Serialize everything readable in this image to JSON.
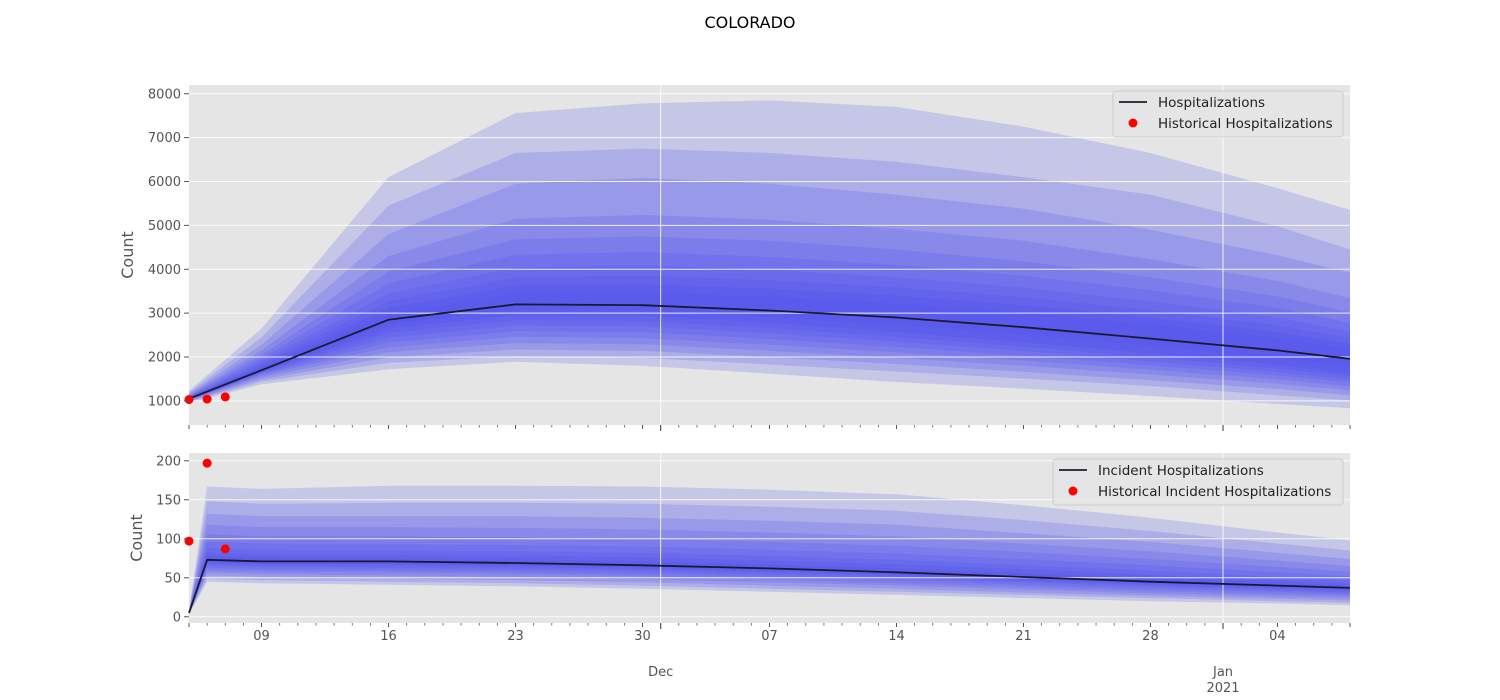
{
  "title": "COLORADO",
  "colors": {
    "panel_bg": "#e5e5e5",
    "grid": "#ffffff",
    "fan": "#4a4af0",
    "median_line": "#1a1a2e",
    "historical": "#ff0000"
  },
  "x_axis": {
    "start_date": "2020-11-05",
    "end_date": "2021-01-08",
    "major_ticks": [
      {
        "date": "2020-12-01",
        "label": "Dec"
      },
      {
        "date": "2021-01-01",
        "label": "Jan\n2021"
      }
    ],
    "minor_tick_labels": [
      {
        "date": "2020-11-09",
        "label": "09"
      },
      {
        "date": "2020-11-16",
        "label": "16"
      },
      {
        "date": "2020-11-23",
        "label": "23"
      },
      {
        "date": "2020-11-30",
        "label": "30"
      },
      {
        "date": "2020-12-07",
        "label": "07"
      },
      {
        "date": "2020-12-14",
        "label": "14"
      },
      {
        "date": "2020-12-21",
        "label": "21"
      },
      {
        "date": "2020-12-28",
        "label": "28"
      },
      {
        "date": "2021-01-04",
        "label": "04"
      }
    ]
  },
  "chart_data": [
    {
      "type": "area",
      "ylabel": "Count",
      "ylim": [
        450,
        8200
      ],
      "yticks": [
        1000,
        2000,
        3000,
        4000,
        5000,
        6000,
        7000,
        8000
      ],
      "grid": true,
      "legend_placement": "top-right",
      "legend": [
        "Hospitalizations",
        "Historical Hospitalizations"
      ],
      "x": [
        "2020-11-05",
        "2020-11-09",
        "2020-11-16",
        "2020-11-23",
        "2020-11-30",
        "2020-12-07",
        "2020-12-14",
        "2020-12-21",
        "2020-12-28",
        "2021-01-04",
        "2021-01-08"
      ],
      "series": [
        {
          "name": "Hospitalizations",
          "values": [
            1050,
            1700,
            2850,
            3200,
            3180,
            3060,
            2900,
            2680,
            2420,
            2150,
            1960
          ]
        }
      ],
      "bands": [
        {
          "lower": [
            950,
            1380,
            1720,
            1890,
            1800,
            1620,
            1430,
            1280,
            1110,
            930,
            830
          ],
          "upper": [
            1230,
            2650,
            6100,
            7560,
            7780,
            7850,
            7700,
            7250,
            6650,
            5850,
            5350
          ]
        },
        {
          "lower": [
            975,
            1440,
            1870,
            2020,
            1980,
            1830,
            1670,
            1510,
            1340,
            1130,
            1010
          ],
          "upper": [
            1190,
            2450,
            5450,
            6650,
            6750,
            6650,
            6450,
            6100,
            5700,
            4980,
            4450
          ]
        },
        {
          "lower": [
            990,
            1490,
            1990,
            2170,
            2140,
            2000,
            1840,
            1660,
            1470,
            1270,
            1130
          ],
          "upper": [
            1160,
            2280,
            4800,
            5950,
            6080,
            5950,
            5700,
            5380,
            4900,
            4320,
            3920
          ]
        },
        {
          "lower": [
            1002,
            1540,
            2110,
            2320,
            2290,
            2140,
            1980,
            1800,
            1600,
            1390,
            1240
          ],
          "upper": [
            1135,
            2150,
            4300,
            5150,
            5240,
            5130,
            4920,
            4650,
            4230,
            3740,
            3340
          ]
        },
        {
          "lower": [
            1012,
            1580,
            2220,
            2460,
            2430,
            2280,
            2110,
            1920,
            1710,
            1490,
            1330
          ],
          "upper": [
            1115,
            2050,
            3950,
            4680,
            4750,
            4650,
            4450,
            4180,
            3820,
            3380,
            3020
          ]
        },
        {
          "lower": [
            1022,
            1610,
            2330,
            2590,
            2570,
            2410,
            2230,
            2030,
            1810,
            1580,
            1420
          ],
          "upper": [
            1100,
            1970,
            3680,
            4330,
            4390,
            4280,
            4100,
            3850,
            3520,
            3120,
            2780
          ]
        },
        {
          "lower": [
            1030,
            1635,
            2440,
            2720,
            2700,
            2540,
            2350,
            2140,
            1900,
            1660,
            1490
          ],
          "upper": [
            1088,
            1900,
            3450,
            4040,
            4090,
            3990,
            3820,
            3580,
            3270,
            2900,
            2590
          ]
        },
        {
          "lower": [
            1036,
            1655,
            2550,
            2840,
            2820,
            2660,
            2460,
            2240,
            1990,
            1740,
            1560
          ],
          "upper": [
            1078,
            1840,
            3270,
            3810,
            3850,
            3750,
            3590,
            3360,
            3070,
            2720,
            2430
          ]
        },
        {
          "lower": [
            1041,
            1670,
            2650,
            2960,
            2940,
            2780,
            2570,
            2340,
            2080,
            1820,
            1630
          ],
          "upper": [
            1070,
            1790,
            3120,
            3620,
            3650,
            3560,
            3400,
            3180,
            2900,
            2570,
            2300
          ]
        },
        {
          "lower": [
            1045,
            1685,
            2750,
            3080,
            3060,
            2920,
            2740,
            2510,
            2250,
            1980,
            1800
          ],
          "upper": [
            1062,
            1745,
            2990,
            3440,
            3470,
            3380,
            3220,
            3010,
            2740,
            2430,
            2180
          ]
        }
      ],
      "historical": {
        "name": "Historical Hospitalizations",
        "x": [
          "2020-11-05",
          "2020-11-06",
          "2020-11-07"
        ],
        "values": [
          1030,
          1040,
          1090
        ]
      }
    },
    {
      "type": "area",
      "ylabel": "Count",
      "ylim": [
        -8,
        210
      ],
      "yticks": [
        0,
        50,
        100,
        150,
        200
      ],
      "grid": true,
      "legend_placement": "top-right",
      "legend": [
        "Incident Hospitalizations",
        "Historical Incident Hospitalizations"
      ],
      "x": [
        "2020-11-05",
        "2020-11-06",
        "2020-11-09",
        "2020-11-16",
        "2020-11-23",
        "2020-11-30",
        "2020-12-07",
        "2020-12-14",
        "2020-12-21",
        "2020-12-28",
        "2021-01-04",
        "2021-01-08"
      ],
      "series": [
        {
          "name": "Incident Hospitalizations",
          "values": [
            5,
            73,
            71,
            71,
            69,
            66,
            62,
            57,
            51,
            45,
            40,
            37
          ]
        }
      ],
      "bands": [
        {
          "lower": [
            3,
            45,
            43,
            41,
            39,
            36,
            32,
            28,
            24,
            20,
            17,
            15
          ],
          "upper": [
            8,
            167,
            164,
            168,
            168,
            167,
            163,
            157,
            143,
            127,
            108,
            98
          ]
        },
        {
          "lower": [
            3.5,
            49,
            47,
            45,
            43,
            40,
            36,
            32,
            28,
            24,
            20,
            18
          ],
          "upper": [
            7.5,
            148,
            145,
            146,
            146,
            145,
            141,
            136,
            124,
            110,
            94,
            85
          ]
        },
        {
          "lower": [
            4,
            53,
            51,
            49,
            47,
            44,
            40,
            36,
            31,
            27,
            23,
            21
          ],
          "upper": [
            7,
            132,
            129,
            129,
            129,
            127,
            123,
            118,
            107,
            96,
            82,
            74
          ]
        },
        {
          "lower": [
            4.2,
            57,
            55,
            53,
            51,
            48,
            44,
            40,
            35,
            30,
            26,
            24
          ],
          "upper": [
            6.7,
            118,
            115,
            115,
            114,
            112,
            108,
            103,
            94,
            84,
            72,
            65
          ]
        },
        {
          "lower": [
            4.4,
            60,
            58,
            57,
            55,
            52,
            48,
            43,
            38,
            33,
            29,
            27
          ],
          "upper": [
            6.4,
            106,
            103,
            103,
            102,
            100,
            96,
            91,
            83,
            74,
            64,
            58
          ]
        },
        {
          "lower": [
            4.6,
            63,
            61,
            60,
            58,
            55,
            51,
            47,
            41,
            36,
            32,
            29
          ],
          "upper": [
            6.2,
            96,
            94,
            93,
            92,
            90,
            86,
            81,
            74,
            66,
            57,
            52
          ]
        },
        {
          "lower": [
            4.7,
            66,
            64,
            63,
            61,
            58,
            54,
            50,
            44,
            39,
            34,
            31
          ],
          "upper": [
            6,
            88,
            86,
            85,
            84,
            82,
            78,
            73,
            66,
            59,
            51,
            47
          ]
        },
        {
          "lower": [
            4.8,
            68,
            66,
            66,
            64,
            61,
            57,
            52,
            46,
            41,
            36,
            33
          ],
          "upper": [
            5.8,
            82,
            80,
            79,
            78,
            76,
            72,
            67,
            61,
            54,
            47,
            43
          ]
        },
        {
          "lower": [
            4.9,
            70,
            68,
            68,
            66,
            63,
            59,
            54,
            48,
            43,
            38,
            35
          ],
          "upper": [
            5.5,
            78,
            76,
            75,
            74,
            71,
            67,
            62,
            56,
            50,
            44,
            40
          ]
        }
      ],
      "historical": {
        "name": "Historical Incident Hospitalizations",
        "x": [
          "2020-11-05",
          "2020-11-06",
          "2020-11-07"
        ],
        "values": [
          97,
          197,
          87
        ]
      }
    }
  ]
}
